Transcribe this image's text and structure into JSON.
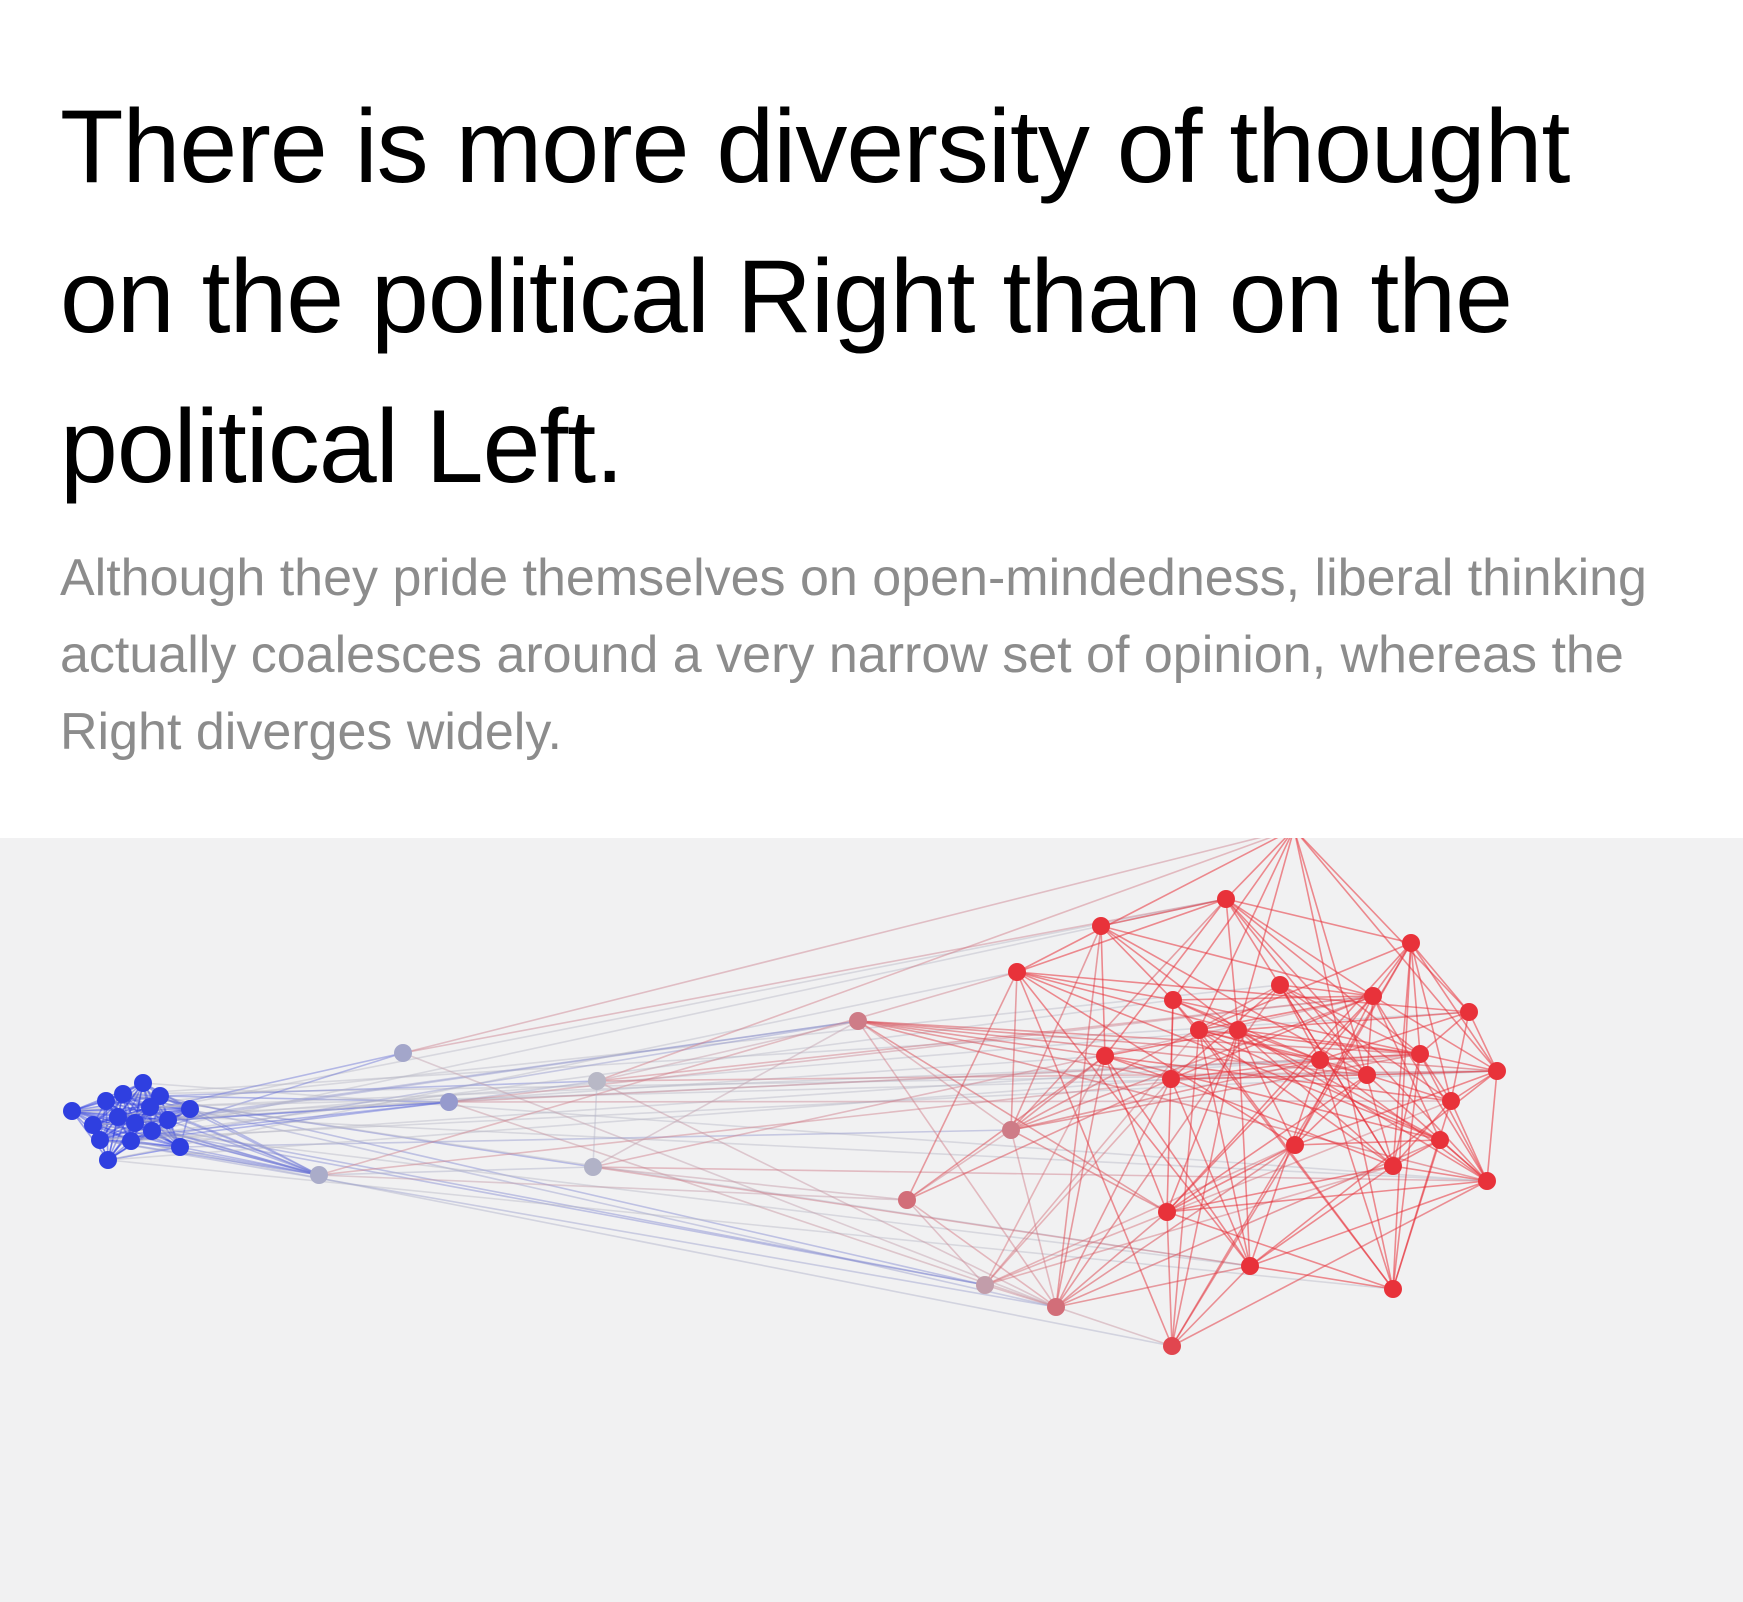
{
  "article": {
    "headline": "There is more diversity of thought on the political Right than on the political Left.",
    "subheadline": "Although they pride themselves on open-mindedness, liberal thinking actually coalesces around a very narrow set of opinion, whereas the Right diverges widely."
  },
  "network_graph": {
    "colors": {
      "left": "#2f3fe0",
      "neutral": "#b8b8c6",
      "right": "#e8323a",
      "background": "#f1f1f2"
    }
  }
}
